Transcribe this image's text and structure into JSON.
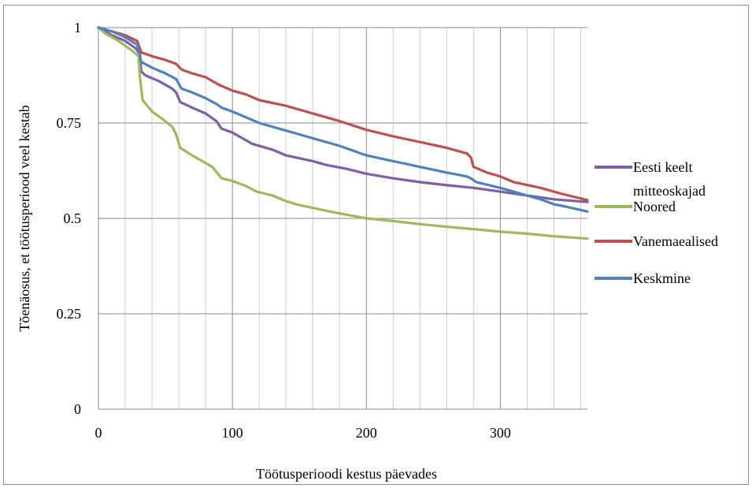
{
  "chart_data": {
    "type": "line",
    "title": "",
    "xlabel": "Töötusperioodi kestus päevades",
    "ylabel": "Tõenäosus, et töötusperiood veel kestab",
    "xlim": [
      0,
      365
    ],
    "ylim": [
      0,
      1
    ],
    "x_ticks": [
      0,
      100,
      200,
      300
    ],
    "x_tick_labels": [
      "0",
      "100",
      "200",
      "300"
    ],
    "y_ticks": [
      0,
      0.25,
      0.5,
      0.75,
      1
    ],
    "y_tick_labels": [
      "0",
      "0.25",
      "0.5",
      "0.75",
      "1"
    ],
    "grid": true,
    "legend_position": "right",
    "series": [
      {
        "name": "Eesti keelt mitteoskajad",
        "legend_lines": [
          "Eesti keelt",
          "mitteoskajad"
        ],
        "color": "#7f5fa6",
        "points": [
          [
            0,
            1
          ],
          [
            5,
            0.99
          ],
          [
            10,
            0.98
          ],
          [
            20,
            0.965
          ],
          [
            28,
            0.945
          ],
          [
            31,
            0.93
          ],
          [
            32,
            0.885
          ],
          [
            35,
            0.875
          ],
          [
            45,
            0.86
          ],
          [
            55,
            0.84
          ],
          [
            58,
            0.83
          ],
          [
            61,
            0.805
          ],
          [
            70,
            0.79
          ],
          [
            80,
            0.775
          ],
          [
            88,
            0.755
          ],
          [
            92,
            0.735
          ],
          [
            100,
            0.725
          ],
          [
            110,
            0.705
          ],
          [
            115,
            0.695
          ],
          [
            130,
            0.68
          ],
          [
            140,
            0.665
          ],
          [
            160,
            0.65
          ],
          [
            170,
            0.64
          ],
          [
            185,
            0.63
          ],
          [
            200,
            0.617
          ],
          [
            220,
            0.605
          ],
          [
            240,
            0.595
          ],
          [
            260,
            0.587
          ],
          [
            280,
            0.58
          ],
          [
            300,
            0.57
          ],
          [
            320,
            0.56
          ],
          [
            340,
            0.55
          ],
          [
            365,
            0.543
          ]
        ]
      },
      {
        "name": "Noored",
        "legend_lines": [
          "Noored"
        ],
        "color": "#9bbb59",
        "points": [
          [
            0,
            1
          ],
          [
            5,
            0.985
          ],
          [
            15,
            0.965
          ],
          [
            25,
            0.94
          ],
          [
            30,
            0.925
          ],
          [
            31,
            0.87
          ],
          [
            33,
            0.81
          ],
          [
            40,
            0.78
          ],
          [
            48,
            0.76
          ],
          [
            55,
            0.74
          ],
          [
            58,
            0.72
          ],
          [
            61,
            0.685
          ],
          [
            70,
            0.665
          ],
          [
            80,
            0.645
          ],
          [
            85,
            0.635
          ],
          [
            92,
            0.605
          ],
          [
            100,
            0.598
          ],
          [
            110,
            0.585
          ],
          [
            118,
            0.57
          ],
          [
            130,
            0.56
          ],
          [
            140,
            0.545
          ],
          [
            150,
            0.535
          ],
          [
            170,
            0.52
          ],
          [
            180,
            0.513
          ],
          [
            200,
            0.5
          ],
          [
            220,
            0.493
          ],
          [
            240,
            0.485
          ],
          [
            260,
            0.478
          ],
          [
            280,
            0.472
          ],
          [
            300,
            0.465
          ],
          [
            320,
            0.46
          ],
          [
            340,
            0.453
          ],
          [
            365,
            0.447
          ]
        ]
      },
      {
        "name": "Vanemaealised",
        "legend_lines": [
          "Vanemaealised"
        ],
        "color": "#c0504d",
        "points": [
          [
            0,
            1
          ],
          [
            10,
            0.99
          ],
          [
            20,
            0.98
          ],
          [
            29,
            0.965
          ],
          [
            32,
            0.935
          ],
          [
            40,
            0.925
          ],
          [
            50,
            0.915
          ],
          [
            58,
            0.905
          ],
          [
            62,
            0.89
          ],
          [
            70,
            0.88
          ],
          [
            80,
            0.87
          ],
          [
            90,
            0.85
          ],
          [
            100,
            0.835
          ],
          [
            110,
            0.825
          ],
          [
            120,
            0.81
          ],
          [
            140,
            0.795
          ],
          [
            160,
            0.775
          ],
          [
            180,
            0.755
          ],
          [
            200,
            0.732
          ],
          [
            220,
            0.715
          ],
          [
            240,
            0.7
          ],
          [
            260,
            0.685
          ],
          [
            275,
            0.67
          ],
          [
            278,
            0.66
          ],
          [
            280,
            0.635
          ],
          [
            290,
            0.62
          ],
          [
            300,
            0.61
          ],
          [
            310,
            0.595
          ],
          [
            330,
            0.58
          ],
          [
            345,
            0.565
          ],
          [
            365,
            0.548
          ]
        ]
      },
      {
        "name": "Keskmine",
        "legend_lines": [
          "Keskmine"
        ],
        "color": "#4f81bd",
        "points": [
          [
            0,
            1
          ],
          [
            10,
            0.99
          ],
          [
            20,
            0.975
          ],
          [
            29,
            0.955
          ],
          [
            32,
            0.91
          ],
          [
            40,
            0.895
          ],
          [
            50,
            0.88
          ],
          [
            58,
            0.865
          ],
          [
            62,
            0.84
          ],
          [
            70,
            0.83
          ],
          [
            80,
            0.815
          ],
          [
            88,
            0.8
          ],
          [
            92,
            0.79
          ],
          [
            100,
            0.78
          ],
          [
            110,
            0.765
          ],
          [
            120,
            0.75
          ],
          [
            140,
            0.73
          ],
          [
            150,
            0.72
          ],
          [
            160,
            0.71
          ],
          [
            180,
            0.69
          ],
          [
            200,
            0.665
          ],
          [
            220,
            0.65
          ],
          [
            240,
            0.635
          ],
          [
            260,
            0.62
          ],
          [
            275,
            0.61
          ],
          [
            278,
            0.605
          ],
          [
            282,
            0.595
          ],
          [
            300,
            0.58
          ],
          [
            320,
            0.56
          ],
          [
            330,
            0.55
          ],
          [
            340,
            0.537
          ],
          [
            350,
            0.53
          ],
          [
            365,
            0.518
          ]
        ]
      }
    ]
  }
}
